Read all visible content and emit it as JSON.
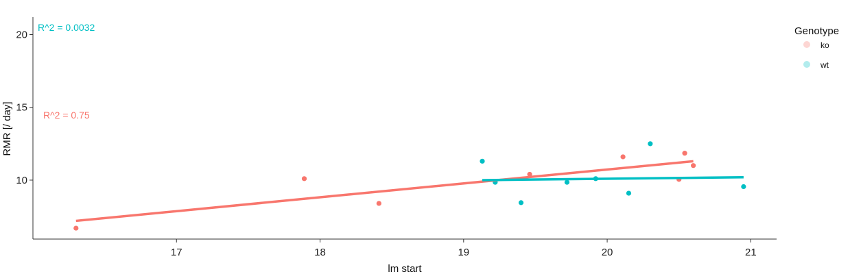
{
  "chart_data": {
    "type": "scatter",
    "xlabel": "lm start",
    "ylabel": "RMR [/ day]",
    "xlim": [
      16.0,
      21.18
    ],
    "ylim": [
      5.95,
      21.2
    ],
    "xticks": [
      "17",
      "18",
      "19",
      "20",
      "21"
    ],
    "yticks": [
      "10",
      "15",
      "20"
    ],
    "legend": {
      "title": "Genotype",
      "placement": "right"
    },
    "grid": false,
    "series": [
      {
        "name": "ko",
        "color": "#F8766D",
        "points": [
          [
            16.3,
            6.7
          ],
          [
            17.89,
            10.1
          ],
          [
            18.41,
            8.4
          ],
          [
            19.46,
            10.4
          ],
          [
            20.11,
            11.6
          ],
          [
            20.5,
            10.05
          ],
          [
            20.54,
            11.85
          ],
          [
            20.6,
            11.0
          ]
        ],
        "fit": {
          "x": [
            16.3,
            20.6
          ],
          "y": [
            7.2,
            11.3
          ]
        },
        "annotation": "R^2 = 0.75"
      },
      {
        "name": "wt",
        "color": "#00BFC4",
        "points": [
          [
            19.13,
            11.3
          ],
          [
            19.22,
            9.85
          ],
          [
            19.4,
            8.45
          ],
          [
            19.72,
            9.85
          ],
          [
            19.92,
            10.1
          ],
          [
            20.15,
            9.1
          ],
          [
            20.3,
            12.5
          ],
          [
            20.95,
            9.55
          ]
        ],
        "fit": {
          "x": [
            19.13,
            20.95
          ],
          "y": [
            10.0,
            10.2
          ]
        },
        "annotation": "R^2 = 0.0032"
      }
    ]
  }
}
